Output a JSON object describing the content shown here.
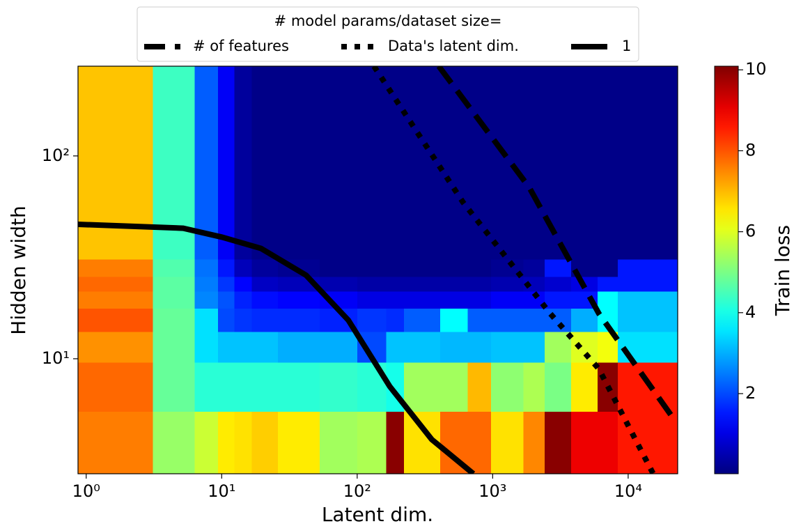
{
  "chart_data": {
    "type": "heatmap",
    "xlabel": "Latent dim.",
    "ylabel": "Hidden width",
    "xscale": "log",
    "yscale": "log",
    "xlim": [
      0.87,
      23200
    ],
    "ylim": [
      2.71,
      277
    ],
    "xticks": [
      {
        "value": 1,
        "label": "10⁰"
      },
      {
        "value": 10,
        "label": "10¹"
      },
      {
        "value": 100,
        "label": "10²"
      },
      {
        "value": 1000,
        "label": "10³"
      },
      {
        "value": 10000,
        "label": "10⁴"
      }
    ],
    "yticks": [
      {
        "value": 10,
        "label": "10¹"
      },
      {
        "value": 100,
        "label": "10²"
      }
    ],
    "x_bins": [
      0.87,
      3.1,
      6.3,
      9.4,
      12.4,
      16.7,
      26,
      53,
      100,
      164,
      221,
      409,
      656,
      970,
      1690,
      2420,
      3790,
      5940,
      8370,
      23200
    ],
    "y_bins": [
      2.71,
      5.5,
      9.6,
      13.6,
      17.7,
      21.5,
      25.4,
      31,
      277
    ],
    "z": [
      [
        7.6,
        5.3,
        5.8,
        6.5,
        6.6,
        6.8,
        6.5,
        5.4,
        5.5,
        10,
        6.6,
        7.8,
        7.8,
        6.6,
        7.5,
        10,
        9.0,
        9.0,
        8.6
      ],
      [
        7.8,
        4.8,
        4.2,
        4.2,
        4.2,
        4.2,
        4.2,
        4.3,
        4.2,
        4.0,
        5.4,
        5.4,
        7.0,
        5.2,
        5.5,
        5.0,
        6.5,
        10,
        8.6
      ],
      [
        7.4,
        4.8,
        3.5,
        3.2,
        3.2,
        3.2,
        3.0,
        3.0,
        2.0,
        3.2,
        3.2,
        3.1,
        3.1,
        3.2,
        3.2,
        5.4,
        6.0,
        6.2,
        3.5
      ],
      [
        8.0,
        4.8,
        3.5,
        2.0,
        1.8,
        1.7,
        1.7,
        1.6,
        1.8,
        1.7,
        2.2,
        3.8,
        2.2,
        2.2,
        2.2,
        2.2,
        3.0,
        3.8,
        3.2
      ],
      [
        7.6,
        4.7,
        2.6,
        2.1,
        1.6,
        1.4,
        1.3,
        1.2,
        1.0,
        1.0,
        1.0,
        1.0,
        1.0,
        1.2,
        1.2,
        1.5,
        1.5,
        3.8,
        3.2
      ],
      [
        7.8,
        4.7,
        2.5,
        1.8,
        1.3,
        0.7,
        0.6,
        0.5,
        0.4,
        0.4,
        0.4,
        0.4,
        0.4,
        0.5,
        0.6,
        0.8,
        1.0,
        1.5,
        1.5
      ],
      [
        7.6,
        4.6,
        2.4,
        1.5,
        0.6,
        0.3,
        0.2,
        0.1,
        0.1,
        0.1,
        0.1,
        0.1,
        0.1,
        0.2,
        0.3,
        1.5,
        0.1,
        0.1,
        1.5
      ],
      [
        6.9,
        4.4,
        2.2,
        1.2,
        0.3,
        0.1,
        0.1,
        0.1,
        0.1,
        0.1,
        0.1,
        0.1,
        0.1,
        0.1,
        0.1,
        0.1,
        0.1,
        0.1,
        0.1
      ]
    ],
    "colormap": "jet",
    "clim": [
      0.02,
      10.09
    ],
    "colorbar_label": "Train loss",
    "colorbar_ticks": [
      2,
      4,
      6,
      8,
      10
    ],
    "legend_title": "# model params/dataset size=",
    "legend_loc": "top",
    "lines": [
      {
        "name": "# of features",
        "style": "dashed",
        "color": "#000000",
        "x": [
          400,
          1860,
          6080,
          22400
        ],
        "y": [
          277,
          70,
          16.7,
          4.9
        ]
      },
      {
        "name": "Data's latent dim.",
        "style": "dotted",
        "color": "#000000",
        "x": [
          133,
          605,
          2660,
          6080,
          15300
        ],
        "y": [
          277,
          59,
          16.7,
          8.9,
          2.71
        ]
      },
      {
        "name": "1",
        "style": "solid",
        "color": "#000000",
        "x": [
          0.87,
          5.2,
          10,
          19.5,
          42,
          86,
          174,
          355,
          720
        ],
        "y": [
          46,
          44,
          39.8,
          35,
          25.8,
          15.5,
          7.3,
          4.0,
          2.71
        ]
      }
    ]
  }
}
